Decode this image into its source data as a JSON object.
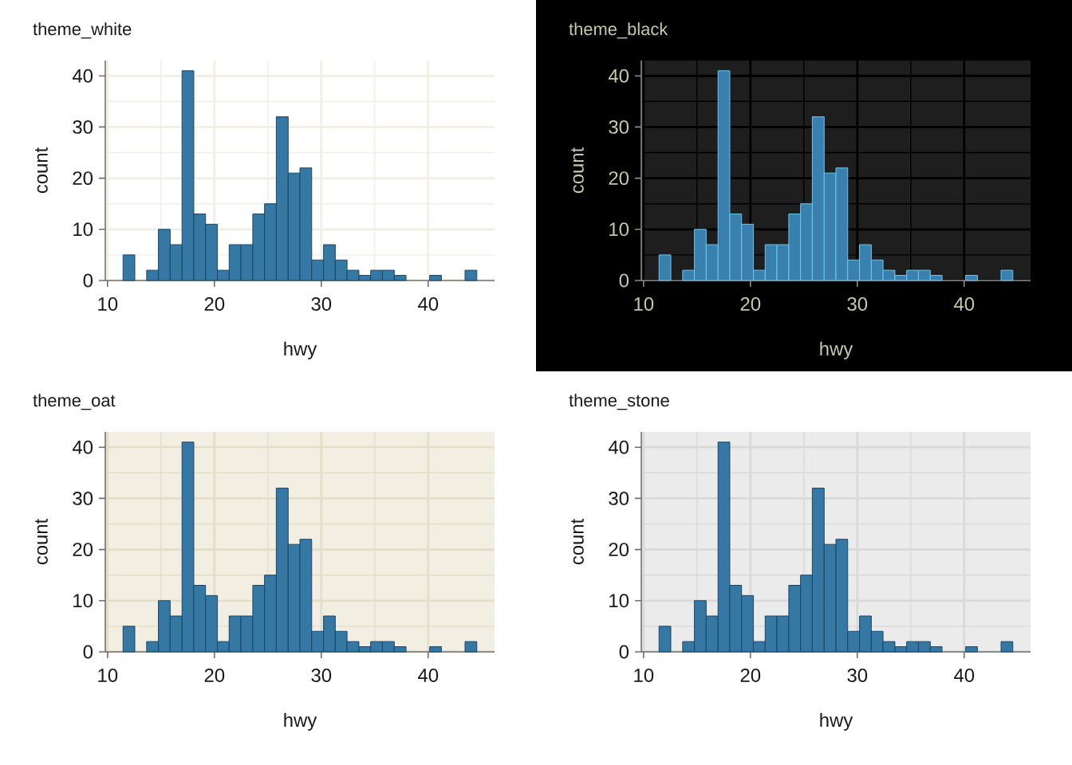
{
  "chart_data": [
    {
      "type": "histogram",
      "title": "theme_white",
      "xlabel": "hwy",
      "ylabel": "count",
      "color": "#3578a4",
      "bins": [
        11.45,
        12.55,
        13.66,
        14.76,
        15.86,
        16.97,
        18.07,
        19.17,
        20.28,
        21.38,
        22.48,
        23.59,
        24.69,
        25.79,
        26.9,
        28.0,
        29.1,
        30.21,
        31.31,
        32.41,
        33.52,
        34.62,
        35.72,
        36.83,
        37.93,
        39.03,
        40.14,
        41.24,
        42.34,
        43.45,
        44.55
      ],
      "values": [
        5,
        0,
        2,
        10,
        7,
        41,
        13,
        11,
        2,
        7,
        7,
        13,
        15,
        32,
        21,
        22,
        4,
        7,
        4,
        2,
        1,
        2,
        2,
        1,
        0,
        0,
        1,
        0,
        0,
        2
      ],
      "xlim": [
        9.79,
        46.21
      ],
      "ylim": [
        0,
        43
      ],
      "xticks": [
        10,
        20,
        30,
        40
      ],
      "yticks": [
        0,
        10,
        20,
        30,
        40
      ],
      "grid": true
    },
    {
      "type": "histogram",
      "title": "theme_black",
      "xlabel": "hwy",
      "ylabel": "count",
      "color": "#3a80ae",
      "bins": [
        11.45,
        12.55,
        13.66,
        14.76,
        15.86,
        16.97,
        18.07,
        19.17,
        20.28,
        21.38,
        22.48,
        23.59,
        24.69,
        25.79,
        26.9,
        28.0,
        29.1,
        30.21,
        31.31,
        32.41,
        33.52,
        34.62,
        35.72,
        36.83,
        37.93,
        39.03,
        40.14,
        41.24,
        42.34,
        43.45,
        44.55
      ],
      "values": [
        5,
        0,
        2,
        10,
        7,
        41,
        13,
        11,
        2,
        7,
        7,
        13,
        15,
        32,
        21,
        22,
        4,
        7,
        4,
        2,
        1,
        2,
        2,
        1,
        0,
        0,
        1,
        0,
        0,
        2
      ],
      "xlim": [
        9.79,
        46.21
      ],
      "ylim": [
        0,
        43
      ],
      "xticks": [
        10,
        20,
        30,
        40
      ],
      "yticks": [
        0,
        10,
        20,
        30,
        40
      ],
      "grid": true
    },
    {
      "type": "histogram",
      "title": "theme_oat",
      "xlabel": "hwy",
      "ylabel": "count",
      "color": "#3578a4",
      "bins": [
        11.45,
        12.55,
        13.66,
        14.76,
        15.86,
        16.97,
        18.07,
        19.17,
        20.28,
        21.38,
        22.48,
        23.59,
        24.69,
        25.79,
        26.9,
        28.0,
        29.1,
        30.21,
        31.31,
        32.41,
        33.52,
        34.62,
        35.72,
        36.83,
        37.93,
        39.03,
        40.14,
        41.24,
        42.34,
        43.45,
        44.55
      ],
      "values": [
        5,
        0,
        2,
        10,
        7,
        41,
        13,
        11,
        2,
        7,
        7,
        13,
        15,
        32,
        21,
        22,
        4,
        7,
        4,
        2,
        1,
        2,
        2,
        1,
        0,
        0,
        1,
        0,
        0,
        2
      ],
      "xlim": [
        9.79,
        46.21
      ],
      "ylim": [
        0,
        43
      ],
      "xticks": [
        10,
        20,
        30,
        40
      ],
      "yticks": [
        0,
        10,
        20,
        30,
        40
      ],
      "grid": true
    },
    {
      "type": "histogram",
      "title": "theme_stone",
      "xlabel": "hwy",
      "ylabel": "count",
      "color": "#3578a4",
      "bins": [
        11.45,
        12.55,
        13.66,
        14.76,
        15.86,
        16.97,
        18.07,
        19.17,
        20.28,
        21.38,
        22.48,
        23.59,
        24.69,
        25.79,
        26.9,
        28.0,
        29.1,
        30.21,
        31.31,
        32.41,
        33.52,
        34.62,
        35.72,
        36.83,
        37.93,
        39.03,
        40.14,
        41.24,
        42.34,
        43.45,
        44.55
      ],
      "values": [
        5,
        0,
        2,
        10,
        7,
        41,
        13,
        11,
        2,
        7,
        7,
        13,
        15,
        32,
        21,
        22,
        4,
        7,
        4,
        2,
        1,
        2,
        2,
        1,
        0,
        0,
        1,
        0,
        0,
        2
      ],
      "xlim": [
        9.79,
        46.21
      ],
      "ylim": [
        0,
        43
      ],
      "xticks": [
        10,
        20,
        30,
        40
      ],
      "yticks": [
        0,
        10,
        20,
        30,
        40
      ],
      "grid": true
    }
  ]
}
